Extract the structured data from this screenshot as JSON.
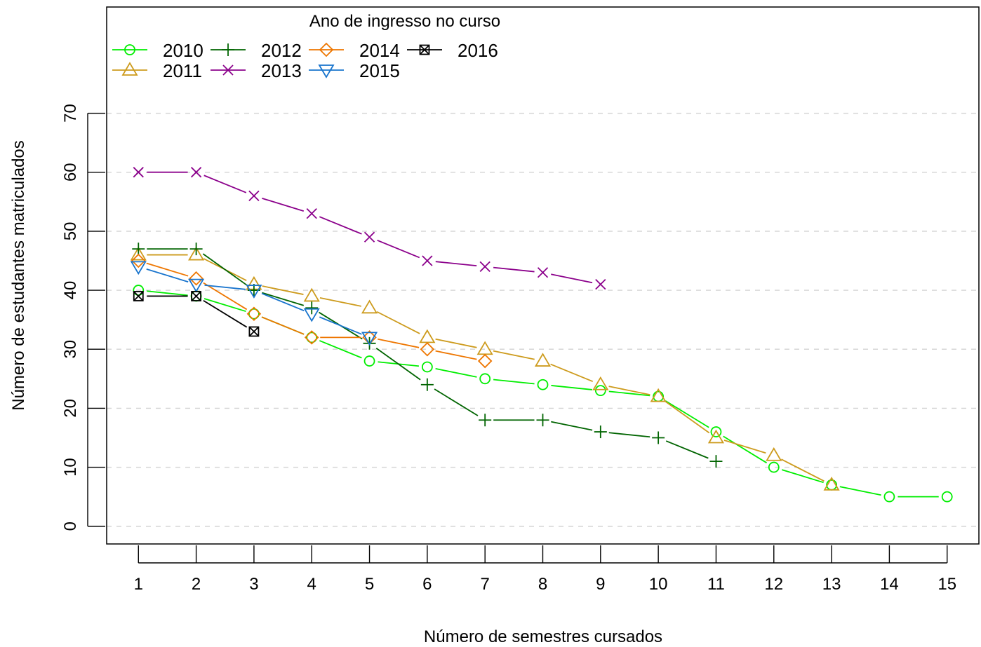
{
  "chart_data": {
    "type": "line",
    "legend_title": "Ano de ingresso no curso",
    "xlabel": "Número de semestres cursados",
    "ylabel": "Número de estudantes matriculados",
    "x_ticks": [
      1,
      2,
      3,
      4,
      5,
      6,
      7,
      8,
      9,
      10,
      11,
      12,
      13,
      14,
      15
    ],
    "y_ticks": [
      0,
      10,
      20,
      30,
      40,
      50,
      60,
      70
    ],
    "xlim": [
      0.45,
      15.55
    ],
    "ylim": [
      -3,
      88
    ],
    "grid": "horizontal dashed",
    "legend_position": "top-left",
    "series": [
      {
        "name": "2010",
        "color": "#00ee00",
        "marker": "circle",
        "x": [
          1,
          2,
          3,
          4,
          5,
          6,
          7,
          8,
          9,
          10,
          11,
          12,
          13,
          14,
          15
        ],
        "values": [
          40,
          39,
          36,
          32,
          28,
          27,
          25,
          24,
          23,
          22,
          16,
          10,
          7,
          5,
          5
        ]
      },
      {
        "name": "2011",
        "color": "#cd9b1d",
        "marker": "triangle-up",
        "x": [
          1,
          2,
          3,
          4,
          5,
          6,
          7,
          8,
          9,
          10,
          11,
          12,
          13
        ],
        "values": [
          46,
          46,
          41,
          39,
          37,
          32,
          30,
          28,
          24,
          22,
          15,
          12,
          7
        ]
      },
      {
        "name": "2012",
        "color": "#006400",
        "marker": "plus",
        "x": [
          1,
          2,
          3,
          4,
          5,
          6,
          7,
          8,
          9,
          10,
          11
        ],
        "values": [
          47,
          47,
          40,
          37,
          31,
          24,
          18,
          18,
          16,
          15,
          11
        ]
      },
      {
        "name": "2013",
        "color": "#8b008b",
        "marker": "cross",
        "x": [
          1,
          2,
          3,
          4,
          5,
          6,
          7,
          8,
          9
        ],
        "values": [
          60,
          60,
          56,
          53,
          49,
          45,
          44,
          43,
          41
        ]
      },
      {
        "name": "2014",
        "color": "#ee7600",
        "marker": "diamond",
        "x": [
          1,
          2,
          3,
          4,
          5,
          6,
          7
        ],
        "values": [
          45,
          42,
          36,
          32,
          32,
          30,
          28
        ]
      },
      {
        "name": "2015",
        "color": "#1874cd",
        "marker": "triangle-down",
        "x": [
          1,
          2,
          3,
          4,
          5
        ],
        "values": [
          44,
          41,
          40,
          36,
          32
        ]
      },
      {
        "name": "2016",
        "color": "#000000",
        "marker": "square-x",
        "x": [
          1,
          2,
          3
        ],
        "values": [
          39,
          39,
          33
        ]
      }
    ]
  }
}
